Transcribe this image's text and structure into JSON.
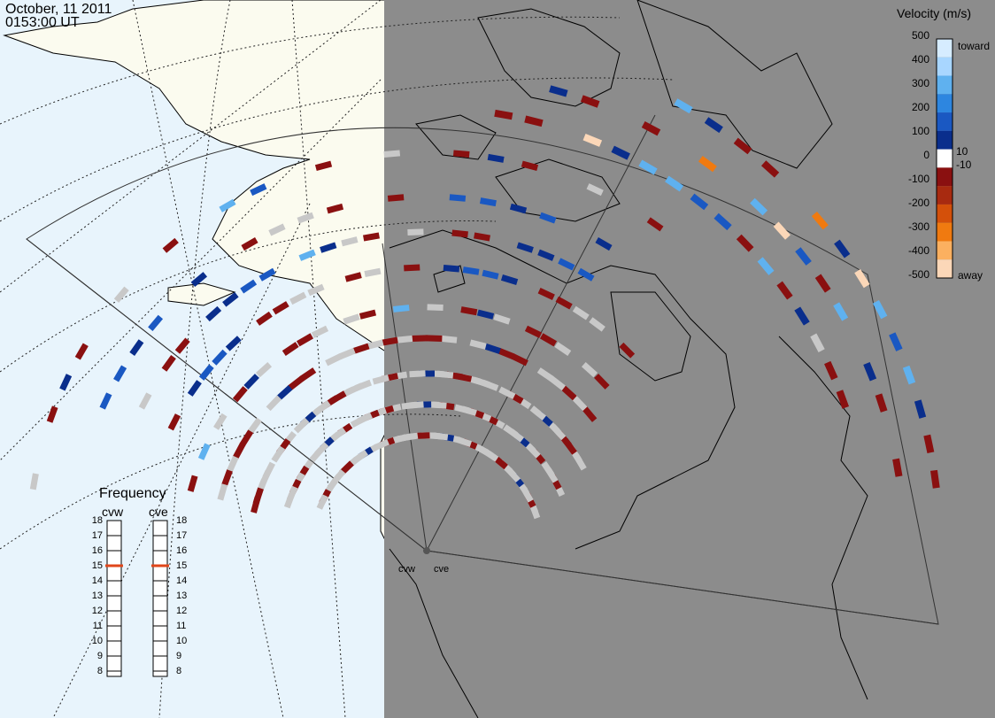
{
  "header": {
    "date": "October, 11 2011",
    "time": "0153:00 UT"
  },
  "velocity_scale": {
    "title": "Velocity (m/s)",
    "ticks": [
      "500",
      "400",
      "300",
      "200",
      "100",
      "10",
      "0",
      "-10",
      "-100",
      "-200",
      "-300",
      "-400",
      "-500"
    ],
    "toward_label": "toward",
    "away_label": "away",
    "colors": [
      "#d6ecff",
      "#a8d6ff",
      "#5fb1ef",
      "#2d86e0",
      "#1a58c2",
      "#0a2e8c",
      "#ffffff",
      "#8a1010",
      "#a82a10",
      "#d4500a",
      "#f07a10",
      "#fbb060",
      "#fbd7b8"
    ]
  },
  "frequency": {
    "title": "Frequency",
    "radars": [
      {
        "name": "cvw",
        "level": 15
      },
      {
        "name": "cve",
        "level": 15
      }
    ],
    "ticks": [
      "18",
      "17",
      "16",
      "15",
      "14",
      "13",
      "12",
      "11",
      "10",
      "9",
      "8"
    ],
    "marker_color": "#e0461a"
  },
  "sites": [
    "cvw",
    "cve"
  ],
  "colors": {
    "ocean": "#e8f4fc",
    "land": "#fbfbef",
    "night": "#8c8c8c",
    "ground_scatter": "#c8c8c8"
  }
}
